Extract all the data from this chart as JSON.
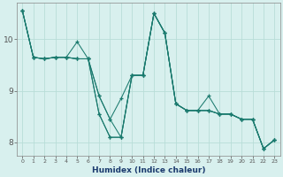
{
  "xlabel": "Humidex (Indice chaleur)",
  "bg_color": "#d8f0ee",
  "grid_color": "#b8ddd8",
  "line_color": "#1a7a6e",
  "xlim": [
    -0.5,
    23.5
  ],
  "ylim": [
    7.75,
    10.7
  ],
  "xticks": [
    0,
    1,
    2,
    3,
    4,
    5,
    6,
    7,
    8,
    9,
    10,
    11,
    12,
    13,
    14,
    15,
    16,
    17,
    18,
    19,
    20,
    21,
    22,
    23
  ],
  "yticks": [
    8,
    9,
    10
  ],
  "series": [
    [
      10.55,
      9.65,
      9.62,
      9.65,
      9.65,
      9.62,
      9.62,
      8.9,
      8.45,
      8.1,
      9.3,
      9.3,
      10.5,
      10.12,
      8.75,
      8.62,
      8.62,
      8.62,
      8.55,
      8.55,
      8.45,
      8.45,
      7.88,
      8.05
    ],
    [
      10.55,
      9.65,
      9.62,
      9.65,
      9.65,
      9.95,
      9.62,
      8.9,
      8.45,
      8.85,
      9.3,
      9.3,
      10.5,
      10.12,
      8.75,
      8.62,
      8.62,
      8.9,
      8.55,
      8.55,
      8.45,
      8.45,
      7.88,
      8.05
    ],
    [
      10.55,
      9.65,
      9.62,
      9.65,
      9.65,
      9.62,
      9.62,
      8.55,
      8.1,
      8.1,
      9.3,
      9.3,
      10.5,
      10.12,
      8.75,
      8.62,
      8.62,
      8.62,
      8.55,
      8.55,
      8.45,
      8.45,
      7.88,
      8.05
    ],
    [
      10.55,
      9.65,
      9.62,
      9.65,
      9.65,
      9.62,
      9.62,
      8.55,
      8.1,
      8.1,
      9.3,
      9.3,
      10.5,
      10.12,
      8.75,
      8.62,
      8.62,
      8.62,
      8.55,
      8.55,
      8.45,
      8.45,
      7.88,
      8.05
    ]
  ]
}
